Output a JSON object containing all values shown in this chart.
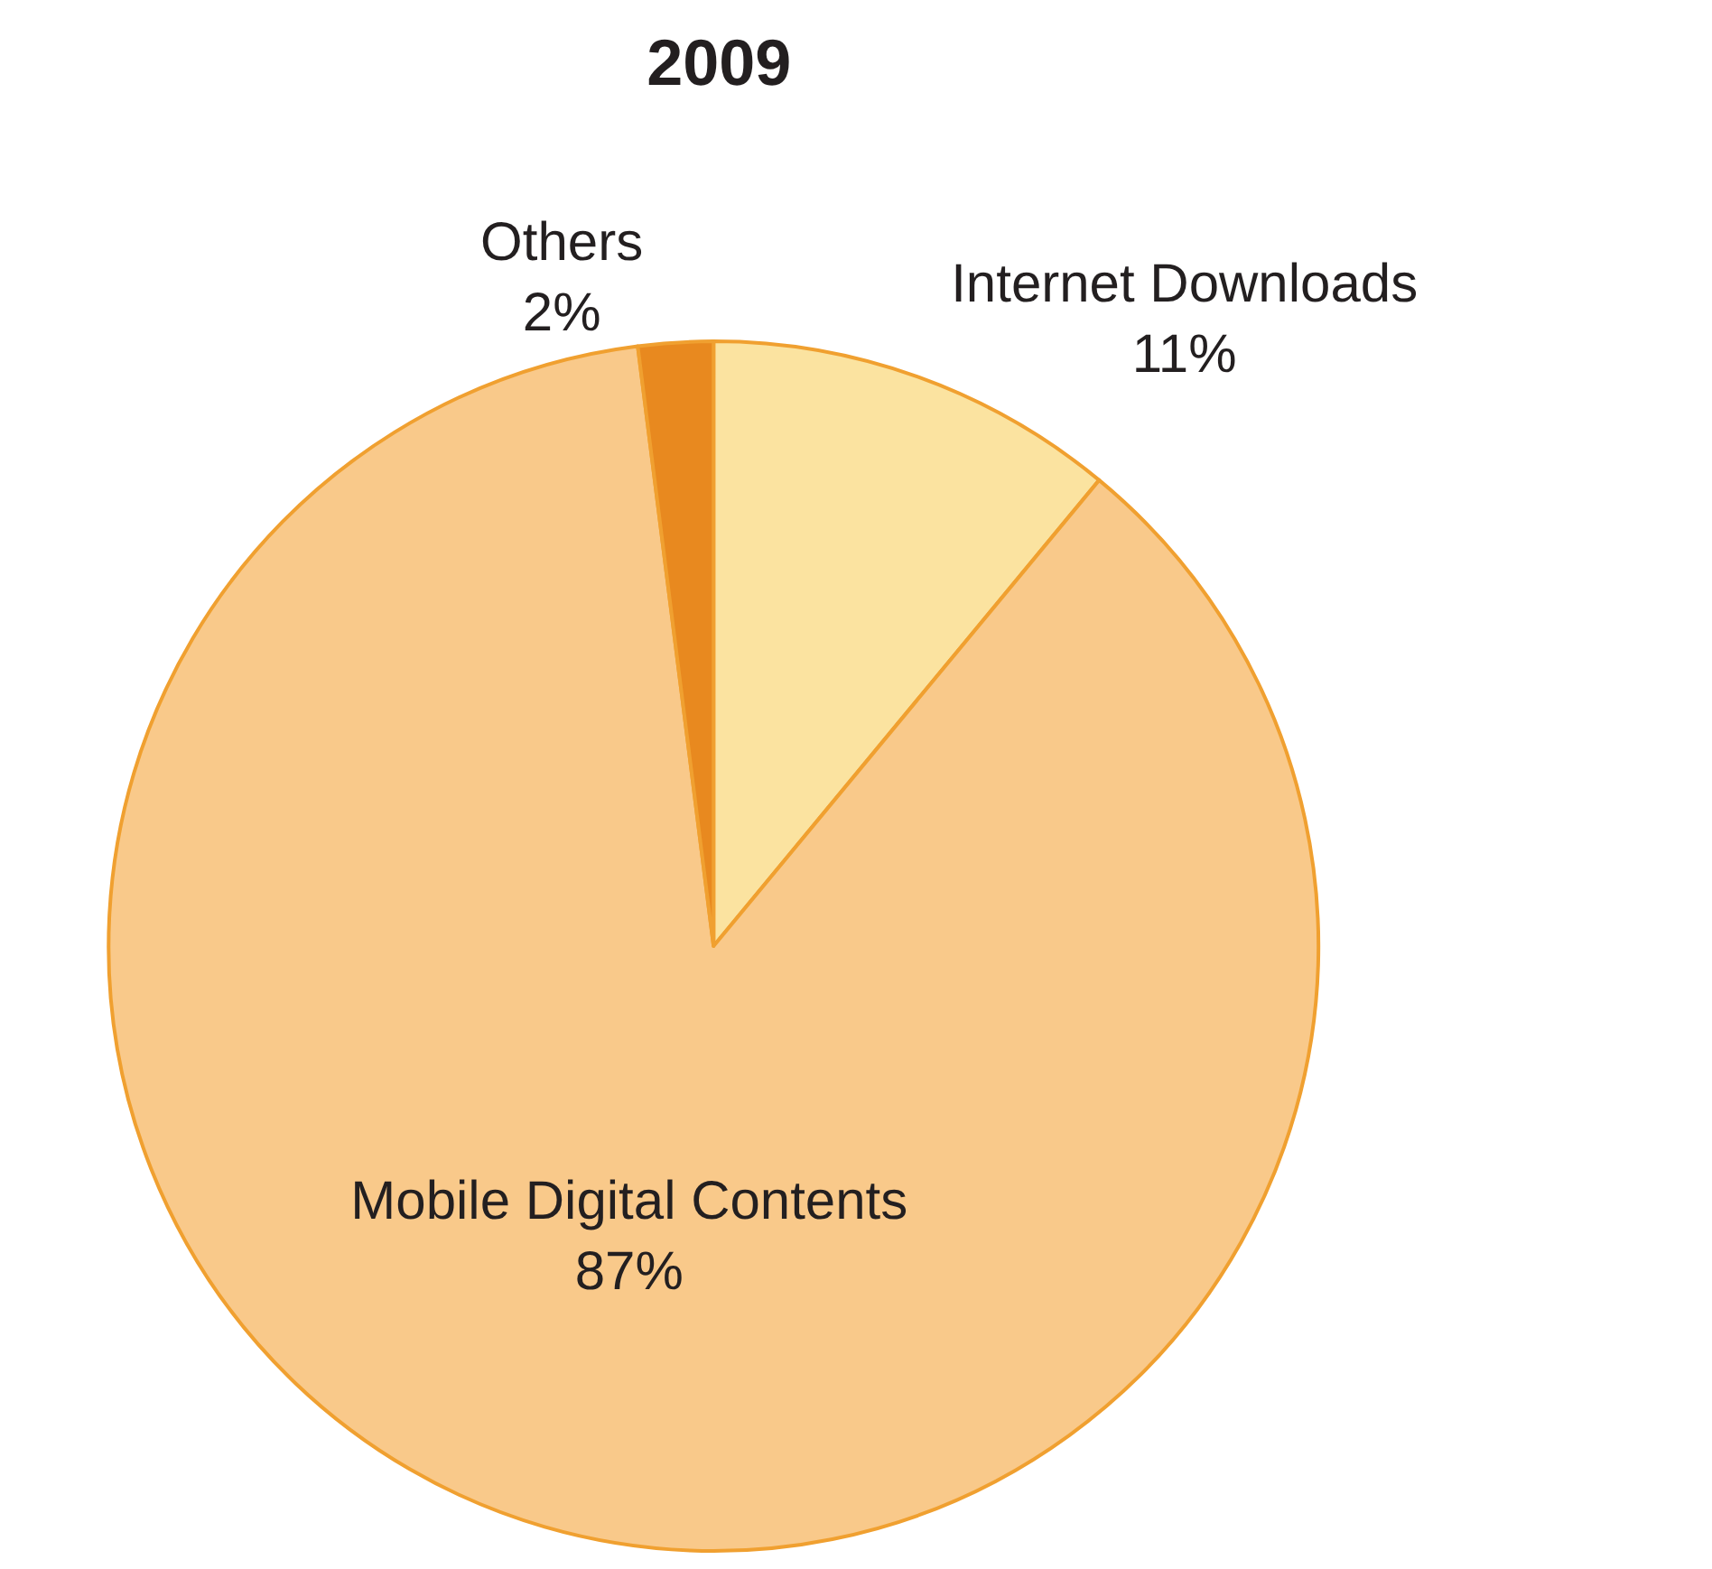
{
  "chart_data": {
    "type": "pie",
    "title": "2009",
    "categories": [
      "Internet Downloads",
      "Mobile Digital Contents",
      "Others"
    ],
    "values": [
      11,
      87,
      2
    ],
    "value_labels": [
      "11%",
      "87%",
      "2%"
    ],
    "colors": [
      "#fbe3a0",
      "#f9c98a",
      "#e8891f"
    ],
    "legend": false
  }
}
